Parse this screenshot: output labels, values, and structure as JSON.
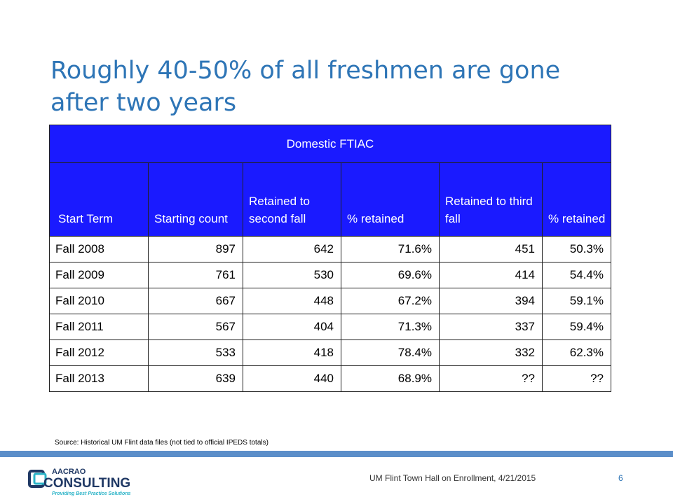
{
  "slide": {
    "title": "Roughly 40-50% of all freshmen are gone after two years",
    "source": "Source:  Historical UM Flint data files (not tied to official IPEDS totals)",
    "footer": "UM Flint Town Hall on Enrollment, 4/21/2015",
    "page_number": "6",
    "logo": {
      "name": "aacrao-consulting-logo",
      "line1": "AACRAO",
      "line2": "CONSULTING",
      "tagline": "Providing Best Practice Solutions"
    }
  },
  "table": {
    "banner": "Domestic FTIAC",
    "headers": [
      "Start Term",
      "Starting count",
      "Retained to second fall",
      "% retained",
      "Retained to third fall",
      "% retained"
    ],
    "rows": [
      [
        "Fall 2008",
        "897",
        "642",
        "71.6%",
        "451",
        "50.3%"
      ],
      [
        "Fall 2009",
        "761",
        "530",
        "69.6%",
        "414",
        "54.4%"
      ],
      [
        "Fall 2010",
        "667",
        "448",
        "67.2%",
        "394",
        "59.1%"
      ],
      [
        "Fall 2011",
        "567",
        "404",
        "71.3%",
        "337",
        "59.4%"
      ],
      [
        "Fall 2012",
        "533",
        "418",
        "78.4%",
        "332",
        "62.3%"
      ],
      [
        "Fall 2013",
        "639",
        "440",
        "68.9%",
        "??",
        "??"
      ]
    ]
  },
  "colors": {
    "title": "#2e75b6",
    "header_bg": "#1a1aff",
    "footer_bar": "#5b8ec9",
    "logo_navy": "#1f3864",
    "logo_teal": "#2ab3c7"
  }
}
